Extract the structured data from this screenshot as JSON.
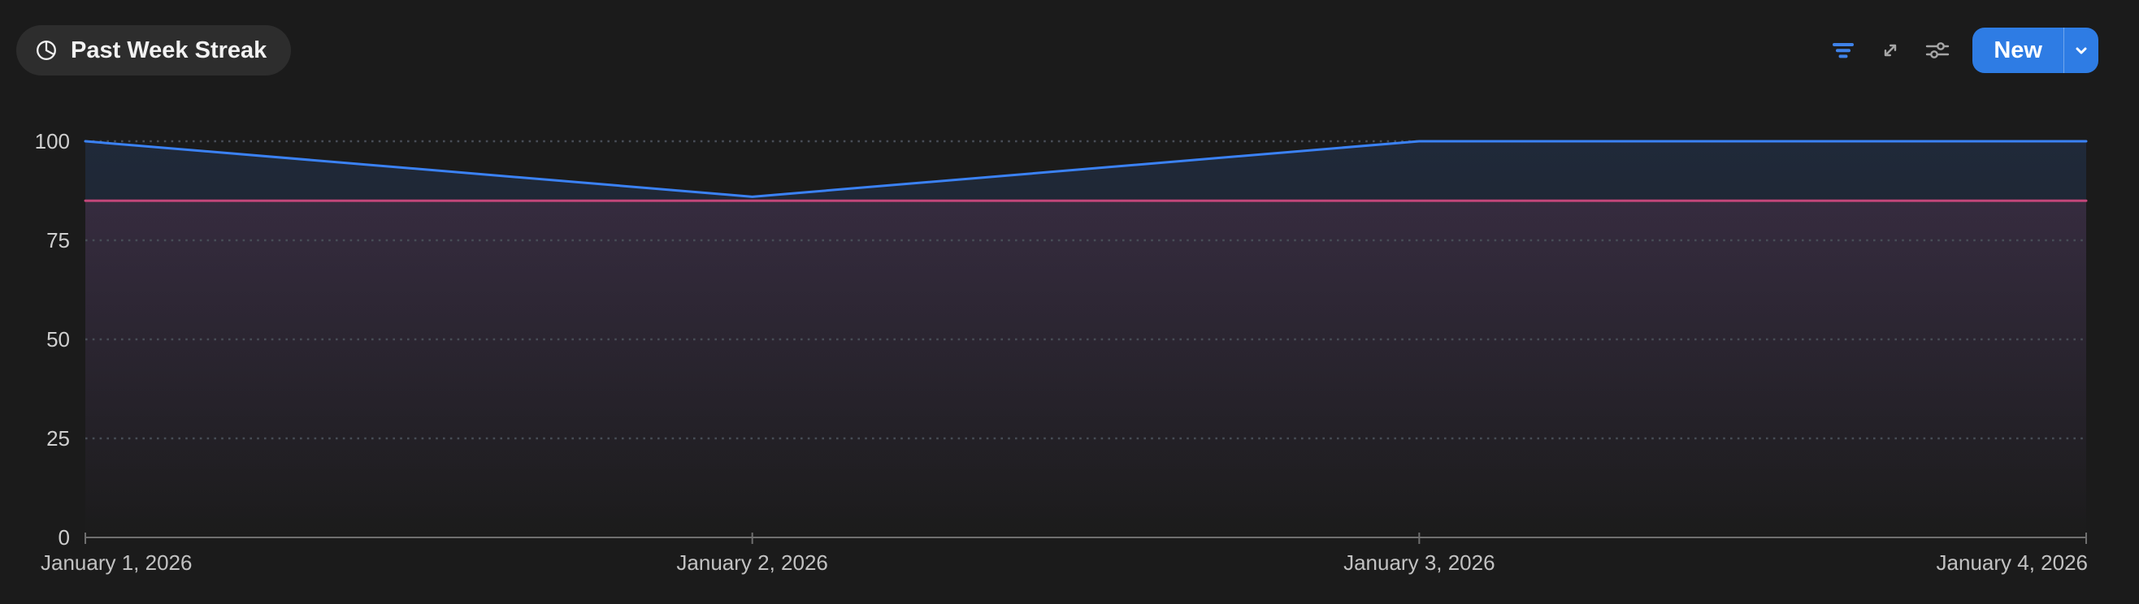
{
  "header": {
    "title_chip": {
      "label": "Past Week Streak",
      "icon": "clock-pie-icon"
    },
    "actions": {
      "filter_icon": "filter-icon",
      "expand_icon": "expand-diagonal-icon",
      "sliders_icon": "sliders-icon",
      "new_button": {
        "label": "New",
        "dropdown_icon": "chevron-down-icon"
      }
    }
  },
  "colors": {
    "page_background": "#1b1b1b",
    "chip_background": "#2d2d2d",
    "accent_blue": "#3b82f6",
    "button_blue": "#2e7ce4",
    "series_pink": "#c24679",
    "grid_dot": "#474d56",
    "axis_line": "#6f6f6f",
    "x_label": "#c2c2c2",
    "y_label": "#cfcfcf",
    "icon_gray": "#a6a6a6"
  },
  "chart_data": {
    "type": "line",
    "title": "Past Week Streak",
    "x": [
      "January 1, 2026",
      "January 2, 2026",
      "January 3, 2026",
      "January 4, 2026"
    ],
    "series": [
      {
        "id": "streak-blue",
        "color": "#3b82f6",
        "values": [
          100,
          86,
          100,
          100
        ],
        "area": true
      },
      {
        "id": "baseline-pink",
        "color": "#c24679",
        "values": [
          85,
          85,
          85,
          85
        ],
        "area": true
      }
    ],
    "ylim": [
      0,
      100
    ],
    "yticks": [
      0,
      25,
      50,
      75,
      100
    ],
    "xlabel": "",
    "ylabel": "",
    "grid": "dotted-horizontal",
    "legend": "none"
  }
}
